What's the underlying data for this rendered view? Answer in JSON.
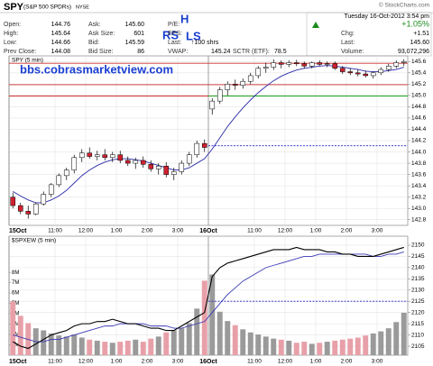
{
  "header": {
    "symbol": "SPY",
    "name": "(S&P 500 SPDRs)",
    "exchange": "NYSE",
    "source": "© StockCharts.com",
    "col1": [
      {
        "label": "Open:",
        "value": "144.76"
      },
      {
        "label": "High:",
        "value": "145.64"
      },
      {
        "label": "Low:",
        "value": "144.66"
      },
      {
        "label": "Prev Close:",
        "value": "144.08"
      }
    ],
    "col2": [
      {
        "label": "Ask:",
        "value": "145.60"
      },
      {
        "label": "Ask Size:",
        "value": "601"
      },
      {
        "label": "Bid:",
        "value": "145.59"
      },
      {
        "label": "Bid Size:",
        "value": "86"
      }
    ],
    "col3": [
      {
        "label": "P/E:"
      },
      {
        "label": "EPS:"
      },
      {
        "label": "Last:",
        "value": "↑100 shrs"
      },
      {
        "label": "VWAP:",
        "value": "145.24"
      }
    ],
    "sctr": {
      "label": "SCTR (ETF):",
      "value": "78.5"
    },
    "quote": {
      "date": "Tuesday  16-Oct-2012  3:54 pm",
      "change_pct": "+1.05%",
      "rows": [
        {
          "label": "Chg:",
          "value": "+1.51"
        },
        {
          "label": "Last:",
          "value": "145.60"
        },
        {
          "label": "Volume:",
          "value": "93,072,296"
        }
      ]
    },
    "annotations": {
      "h": "H",
      "rs": "RS",
      "ls": "LS",
      "site": "bbs.cobrasmarketview.com"
    }
  },
  "chart_data": [
    {
      "type": "candlestick",
      "title": "SPY (5 min)",
      "categories": [
        "15Oct",
        null,
        null,
        null,
        null,
        null,
        "11:00",
        null,
        null,
        null,
        "12:00",
        null,
        null,
        null,
        "1:00",
        null,
        null,
        null,
        "2:00",
        null,
        null,
        null,
        "3:00",
        null,
        null,
        null,
        "16Oct",
        null,
        null,
        null,
        null,
        null,
        "11:00",
        null,
        null,
        null,
        "12:00",
        null,
        null,
        null,
        "1:00",
        null,
        null,
        null,
        "2:00",
        null,
        null,
        null,
        "3:00",
        null,
        null,
        null
      ],
      "open": [
        143.2,
        143.05,
        142.95,
        142.9,
        143.08,
        143.25,
        143.42,
        143.58,
        143.68,
        143.9,
        143.98,
        143.92,
        143.95,
        143.9,
        143.95,
        143.85,
        143.8,
        143.85,
        143.78,
        143.7,
        143.75,
        143.6,
        143.65,
        143.8,
        143.95,
        144.15,
        144.76,
        144.9,
        145.1,
        145.2,
        145.18,
        145.25,
        145.35,
        145.48,
        145.5,
        145.58,
        145.55,
        145.58,
        145.56,
        145.52,
        145.58,
        145.55,
        145.56,
        145.48,
        145.42,
        145.4,
        145.38,
        145.35,
        145.4,
        145.46,
        145.52,
        145.58
      ],
      "high": [
        143.28,
        143.1,
        143.05,
        143.1,
        143.3,
        143.45,
        143.62,
        143.72,
        143.95,
        144.05,
        144.08,
        144.02,
        144.05,
        144.0,
        144.02,
        143.92,
        143.9,
        143.92,
        143.85,
        143.8,
        143.82,
        143.72,
        143.85,
        144.0,
        144.2,
        144.22,
        144.95,
        145.15,
        145.25,
        145.28,
        145.3,
        145.4,
        145.52,
        145.58,
        145.64,
        145.62,
        145.62,
        145.63,
        145.6,
        145.6,
        145.62,
        145.6,
        145.6,
        145.52,
        145.48,
        145.46,
        145.44,
        145.42,
        145.5,
        145.56,
        145.62,
        145.64
      ],
      "low": [
        143.0,
        142.9,
        142.82,
        142.88,
        143.05,
        143.2,
        143.38,
        143.5,
        143.62,
        143.82,
        143.88,
        143.85,
        143.85,
        143.82,
        143.8,
        143.75,
        143.7,
        143.72,
        143.65,
        143.6,
        143.55,
        143.5,
        143.6,
        143.75,
        143.9,
        144.0,
        144.66,
        144.85,
        145.0,
        145.1,
        145.12,
        145.2,
        145.3,
        145.4,
        145.45,
        145.48,
        145.5,
        145.52,
        145.48,
        145.48,
        145.52,
        145.5,
        145.45,
        145.38,
        145.36,
        145.34,
        145.32,
        145.3,
        145.36,
        145.42,
        145.48,
        145.52
      ],
      "close": [
        143.05,
        142.95,
        142.9,
        143.08,
        143.25,
        143.42,
        143.58,
        143.68,
        143.9,
        143.98,
        143.92,
        143.95,
        143.9,
        143.95,
        143.85,
        143.8,
        143.85,
        143.78,
        143.7,
        143.75,
        143.6,
        143.65,
        143.8,
        143.95,
        144.15,
        144.08,
        144.9,
        145.1,
        145.2,
        145.18,
        145.25,
        145.35,
        145.48,
        145.5,
        145.58,
        145.55,
        145.58,
        145.56,
        145.52,
        145.58,
        145.55,
        145.56,
        145.48,
        145.42,
        145.4,
        145.38,
        145.35,
        145.4,
        145.46,
        145.52,
        145.58,
        145.6
      ],
      "lines": [
        {
          "color": "#2b2ba8",
          "values": [
            143.3,
            143.22,
            143.15,
            143.1,
            143.1,
            143.15,
            143.22,
            143.32,
            143.45,
            143.58,
            143.68,
            143.76,
            143.82,
            143.86,
            143.88,
            143.88,
            143.86,
            143.84,
            143.8,
            143.76,
            143.72,
            143.68,
            143.68,
            143.72,
            143.8,
            143.88,
            144.05,
            144.25,
            144.45,
            144.62,
            144.78,
            144.92,
            145.05,
            145.16,
            145.26,
            145.34,
            145.4,
            145.45,
            145.48,
            145.5,
            145.52,
            145.53,
            145.52,
            145.5,
            145.48,
            145.46,
            145.43,
            145.42,
            145.42,
            145.44,
            145.46,
            145.5
          ]
        }
      ],
      "levels": [
        {
          "value": 145.57,
          "color": "#d03030"
        },
        {
          "value": 145.19,
          "color": "#d03030"
        },
        {
          "value": 144.99,
          "color": "#d03030"
        },
        {
          "value": 144.99,
          "color": "#20a020",
          "start": 26
        },
        {
          "value": 144.11,
          "color": "#2020c0",
          "dash": true,
          "start": 26
        }
      ],
      "up_color": "#ffffff",
      "down_color": "#d02030",
      "ylim": [
        142.7,
        145.7
      ],
      "yticks": [
        {
          "value": 142.8,
          "label": "142.8"
        },
        {
          "value": 143,
          "label": "143.0"
        },
        143.2,
        143.4,
        143.6,
        143.8,
        {
          "value": 144,
          "label": "144.0"
        },
        144.2,
        144.4,
        144.6,
        144.8,
        {
          "value": 145,
          "label": "145.0"
        },
        145.2,
        145.4,
        145.6
      ],
      "grid": true
    },
    {
      "type": "line",
      "title": "$SPXEW (5 min)",
      "categories": [
        "15Oct",
        null,
        null,
        null,
        null,
        null,
        "11:00",
        null,
        null,
        null,
        "12:00",
        null,
        null,
        null,
        "1:00",
        null,
        null,
        null,
        "2:00",
        null,
        null,
        null,
        "3:00",
        null,
        null,
        null,
        "16Oct",
        null,
        null,
        null,
        null,
        null,
        "11:00",
        null,
        null,
        null,
        "12:00",
        null,
        null,
        null,
        "1:00",
        null,
        null,
        null,
        "2:00",
        null,
        null,
        null,
        "3:00",
        null,
        null,
        null
      ],
      "series": [
        {
          "color": "#000000",
          "values": [
            2107,
            2105,
            2104,
            2106,
            2108,
            2110,
            2111,
            2112,
            2114,
            2115,
            2115,
            2116,
            2116,
            2117,
            2116,
            2115,
            2115,
            2114,
            2113,
            2113,
            2112,
            2112,
            2114,
            2116,
            2118,
            2120,
            2136,
            2140,
            2142,
            2143,
            2144,
            2145,
            2146,
            2147,
            2148,
            2148,
            2148,
            2149,
            2148,
            2148,
            2148,
            2147,
            2147,
            2146,
            2146,
            2145,
            2145,
            2145,
            2146,
            2147,
            2148,
            2149
          ]
        },
        {
          "color": "#3a3ab8",
          "values": [
            2110,
            2109,
            2108,
            2107,
            2107,
            2108,
            2108,
            2109,
            2110,
            2111,
            2112,
            2113,
            2114,
            2114,
            2115,
            2115,
            2115,
            2115,
            2114,
            2114,
            2114,
            2113,
            2113,
            2114,
            2115,
            2116,
            2120,
            2124,
            2128,
            2131,
            2134,
            2136,
            2138,
            2140,
            2141,
            2142,
            2143,
            2144,
            2145,
            2145,
            2146,
            2146,
            2146,
            2146,
            2146,
            2146,
            2146,
            2145,
            2145,
            2146,
            2146,
            2147
          ]
        }
      ],
      "volume": {
        "axis": "y2",
        "color": "#9a9a9a",
        "values": [
          5200000,
          3800000,
          3100000,
          2600000,
          2400000,
          2100000,
          1900000,
          1800000,
          2000000,
          1700000,
          1500000,
          1400000,
          1300000,
          1200000,
          1300000,
          1400000,
          1500000,
          1300000,
          1600000,
          1800000,
          2200000,
          2400000,
          2600000,
          3100000,
          4500000,
          7200000,
          7800000,
          4200000,
          3300000,
          2900000,
          2500000,
          2200000,
          2000000,
          1800000,
          1600000,
          1500000,
          1400000,
          1200000,
          1300000,
          1100000,
          1200000,
          1300000,
          1400000,
          1500000,
          1600000,
          1700000,
          1900000,
          2100000,
          2300000,
          2600000,
          3200000,
          4100000
        ]
      },
      "levels": [
        {
          "value": 2125,
          "color": "#2020c0",
          "dash": true,
          "start": 26
        }
      ],
      "ylim": [
        2101,
        2154
      ],
      "yticks": [
        2105,
        2110,
        2115,
        2120,
        2125,
        2130,
        2135,
        2140,
        2145,
        2150
      ],
      "y2lim": [
        0,
        11500000
      ],
      "y2ticks": [
        {
          "value": 1000000,
          "label": "1M"
        },
        {
          "value": 2000000,
          "label": "2M"
        },
        {
          "value": 3000000,
          "label": "3M"
        },
        {
          "value": 4000000,
          "label": "4M"
        },
        {
          "value": 5000000,
          "label": "5M"
        },
        {
          "value": 6000000,
          "label": "6M"
        },
        {
          "value": 7000000,
          "label": "7M"
        },
        {
          "value": 8000000,
          "label": "8M"
        }
      ],
      "grid": true
    }
  ]
}
